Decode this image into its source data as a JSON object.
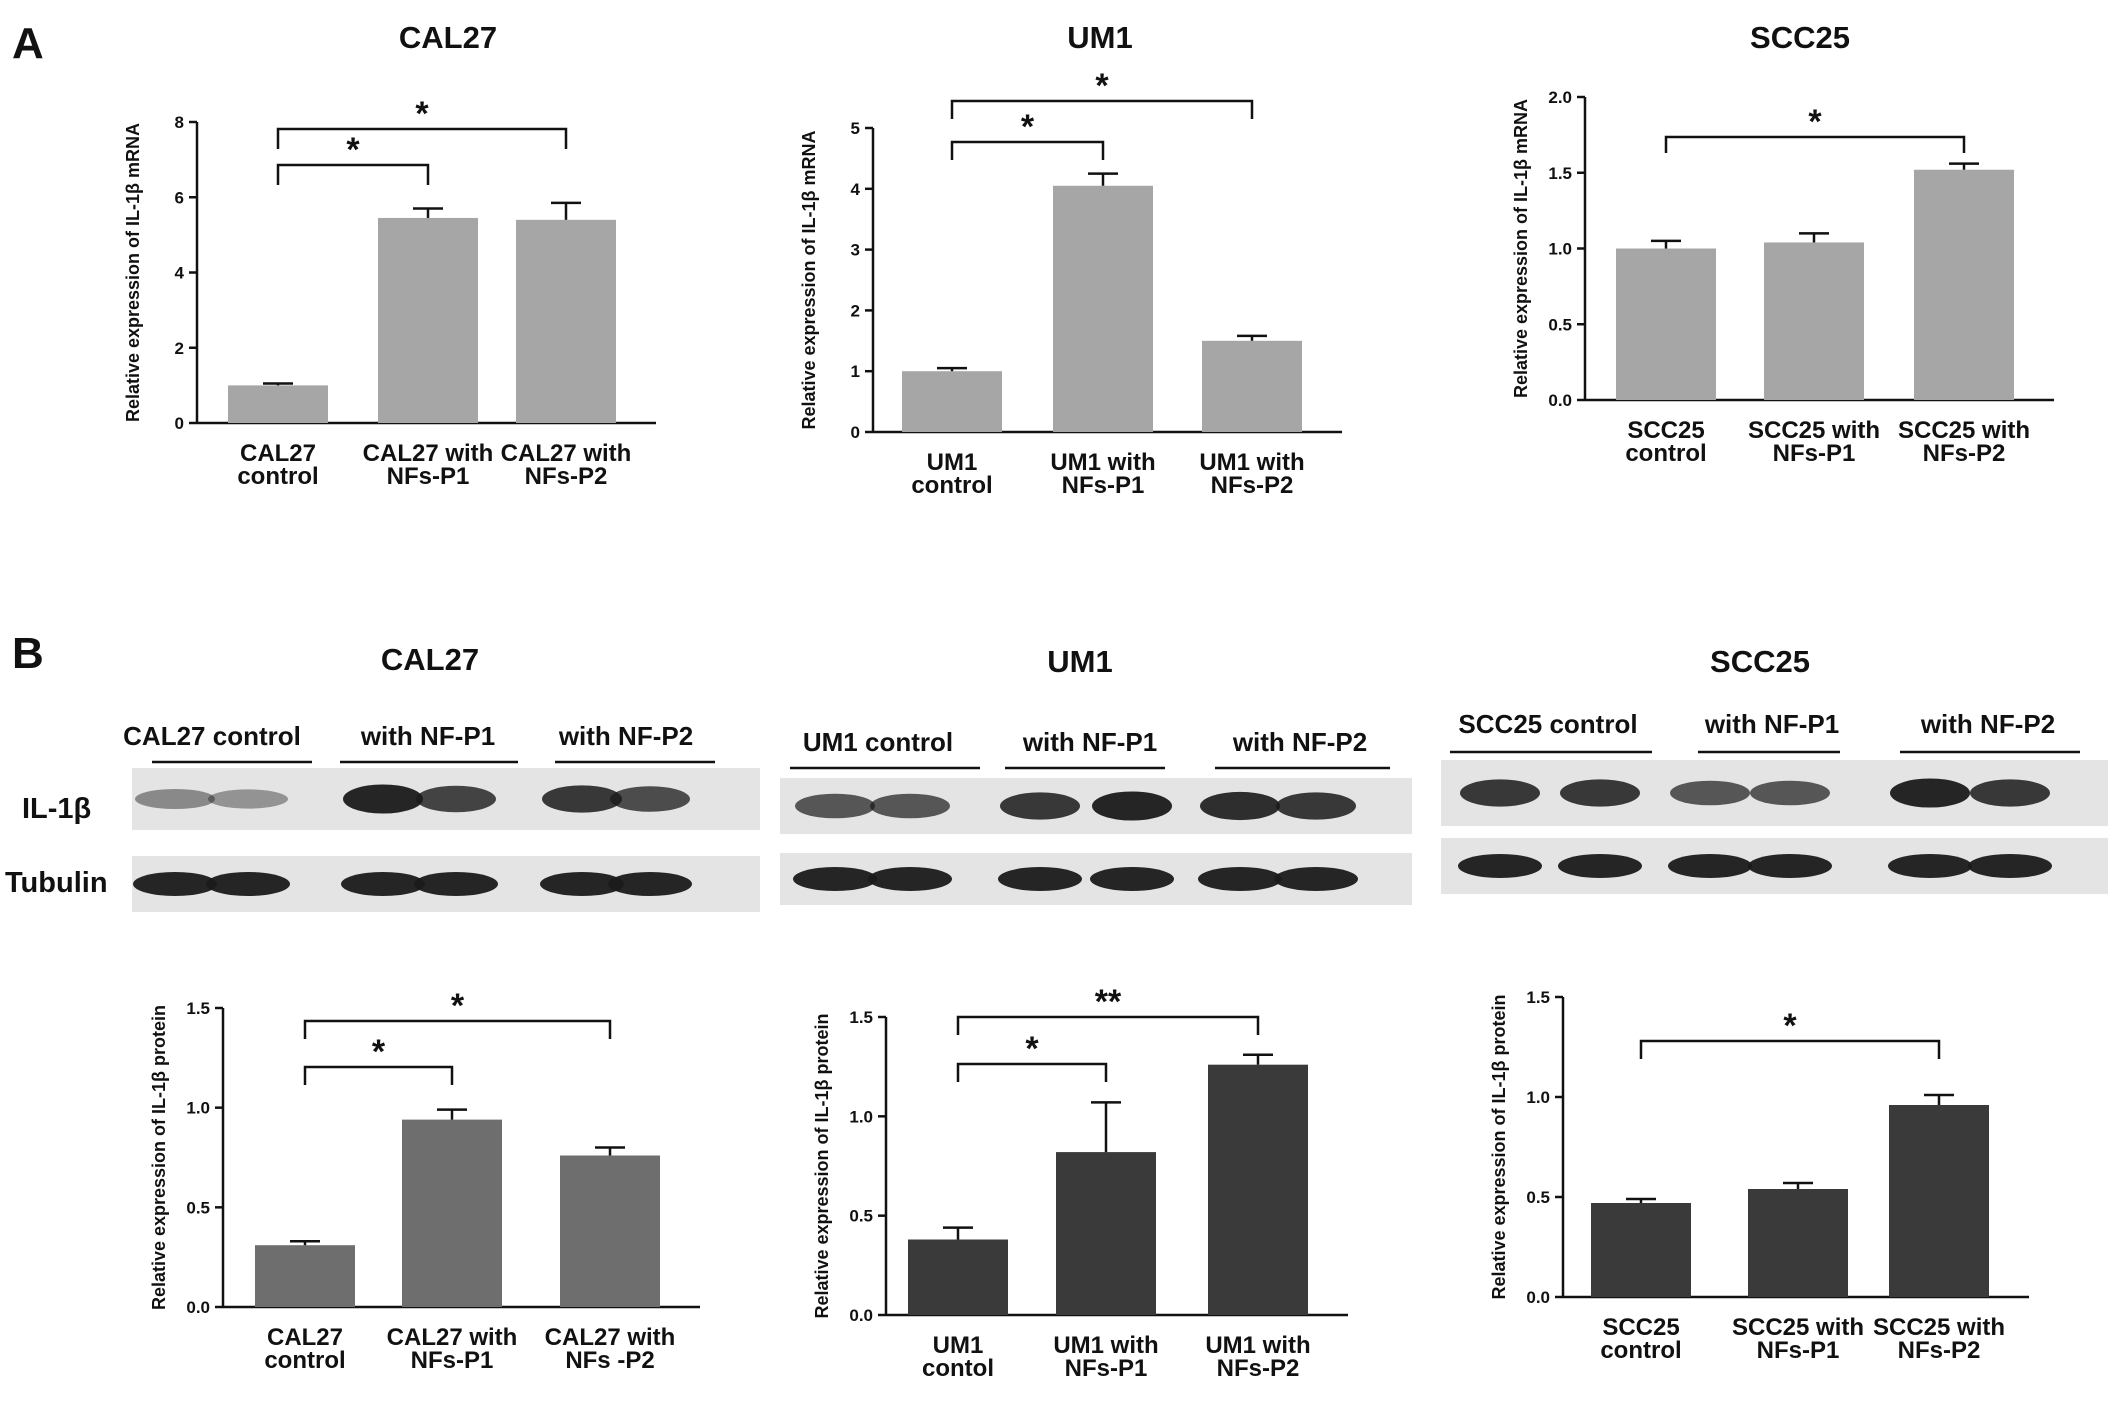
{
  "figure": {
    "panel_a_label": "A",
    "panel_b_label": "B"
  },
  "colors": {
    "bar_mrna": "#a6a6a6",
    "bar_protein_cal27": "#6e6e6e",
    "bar_protein_dark": "#3a3a3a",
    "axis": "#111111",
    "blot_background": "#e4e4e4",
    "blot_band": "#1a1a1a"
  },
  "blots": [
    {
      "title": "CAL27",
      "group_labels": [
        "CAL27 control",
        "with NF-P1",
        "with NF-P2"
      ],
      "row_labels": [
        "IL-1β",
        "Tubulin"
      ],
      "il1b_band_intensity": [
        0.45,
        0.4,
        0.95,
        0.8,
        0.85,
        0.75
      ],
      "tubulin_band_intensity": [
        0.95,
        0.95,
        0.95,
        0.95,
        0.95,
        0.95
      ]
    },
    {
      "title": "UM1",
      "group_labels": [
        "UM1 control",
        "with NF-P1",
        "with NF-P2"
      ],
      "row_labels": [],
      "il1b_band_intensity": [
        0.7,
        0.7,
        0.85,
        0.95,
        0.9,
        0.85
      ],
      "tubulin_band_intensity": [
        0.95,
        0.95,
        0.95,
        0.95,
        0.95,
        0.95
      ]
    },
    {
      "title": "SCC25",
      "group_labels": [
        "SCC25 control",
        "with NF-P1",
        "with NF-P2"
      ],
      "row_labels": [],
      "il1b_band_intensity": [
        0.85,
        0.85,
        0.7,
        0.7,
        0.95,
        0.85
      ],
      "tubulin_band_intensity": [
        0.95,
        0.95,
        0.95,
        0.95,
        0.95,
        0.95
      ]
    }
  ],
  "chart_data": [
    {
      "type": "bar",
      "panel": "A",
      "title": "CAL27",
      "ylabel": "Relative expression of IL-1β  mRNA",
      "categories": [
        "CAL27\ncontrol",
        "CAL27 with\nNFs-P1",
        "CAL27 with\nNFs-P2"
      ],
      "values": [
        1.0,
        5.45,
        5.4
      ],
      "errors": [
        0.05,
        0.25,
        0.45
      ],
      "ylim": [
        0,
        8
      ],
      "yticks": [
        "0",
        "2",
        "4",
        "6",
        "8"
      ],
      "significance": [
        {
          "from": 0,
          "to": 1,
          "label": "*"
        },
        {
          "from": 0,
          "to": 2,
          "label": "*"
        }
      ]
    },
    {
      "type": "bar",
      "panel": "A",
      "title": "UM1",
      "ylabel": "Relative expression of IL-1β  mRNA",
      "categories": [
        "UM1\ncontrol",
        "UM1 with\nNFs-P1",
        "UM1 with\nNFs-P2"
      ],
      "values": [
        1.0,
        4.05,
        1.5
      ],
      "errors": [
        0.05,
        0.2,
        0.08
      ],
      "ylim": [
        0,
        5
      ],
      "yticks": [
        "0",
        "1",
        "2",
        "3",
        "4",
        "5"
      ],
      "significance": [
        {
          "from": 0,
          "to": 1,
          "label": "*"
        },
        {
          "from": 0,
          "to": 2,
          "label": "*"
        }
      ]
    },
    {
      "type": "bar",
      "panel": "A",
      "title": "SCC25",
      "ylabel": "Relative expression of IL-1β  mRNA",
      "categories": [
        "SCC25\ncontrol",
        "SCC25 with\nNFs-P1",
        "SCC25 with\nNFs-P2"
      ],
      "values": [
        1.0,
        1.04,
        1.52
      ],
      "errors": [
        0.05,
        0.06,
        0.04
      ],
      "ylim": [
        0,
        2
      ],
      "yticks": [
        "0.0",
        "0.5",
        "1.0",
        "1.5",
        "2.0"
      ],
      "significance": [
        {
          "from": 0,
          "to": 2,
          "label": "*"
        }
      ]
    },
    {
      "type": "bar",
      "panel": "B",
      "title": "",
      "ylabel": "Relative expression of IL-1β  protein",
      "categories": [
        "CAL27\ncontrol",
        "CAL27 with\nNFs-P1",
        "CAL27 with\nNFs -P2"
      ],
      "values": [
        0.31,
        0.94,
        0.76
      ],
      "errors": [
        0.02,
        0.05,
        0.04
      ],
      "ylim": [
        0,
        1.5
      ],
      "yticks": [
        "0.0",
        "0.5",
        "1.0",
        "1.5"
      ],
      "significance": [
        {
          "from": 0,
          "to": 1,
          "label": "*"
        },
        {
          "from": 0,
          "to": 2,
          "label": "*"
        }
      ]
    },
    {
      "type": "bar",
      "panel": "B",
      "title": "",
      "ylabel": "Relative expression of IL-1β  protein",
      "categories": [
        "UM1\ncontol",
        "UM1 with\nNFs-P1",
        "UM1 with\nNFs-P2"
      ],
      "values": [
        0.38,
        0.82,
        1.26
      ],
      "errors": [
        0.06,
        0.25,
        0.05
      ],
      "ylim": [
        0,
        1.5
      ],
      "yticks": [
        "0.0",
        "0.5",
        "1.0",
        "1.5"
      ],
      "significance": [
        {
          "from": 0,
          "to": 1,
          "label": "*"
        },
        {
          "from": 0,
          "to": 2,
          "label": "**"
        }
      ]
    },
    {
      "type": "bar",
      "panel": "B",
      "title": "",
      "ylabel": "Relative expression of IL-1β  protein",
      "categories": [
        "SCC25\ncontrol",
        "SCC25 with\nNFs-P1",
        "SCC25 with\nNFs-P2"
      ],
      "values": [
        0.47,
        0.54,
        0.96
      ],
      "errors": [
        0.02,
        0.03,
        0.05
      ],
      "ylim": [
        0,
        1.5
      ],
      "yticks": [
        "0.0",
        "0.5",
        "1.0",
        "1.5"
      ],
      "significance": [
        {
          "from": 0,
          "to": 2,
          "label": "*"
        }
      ]
    }
  ]
}
